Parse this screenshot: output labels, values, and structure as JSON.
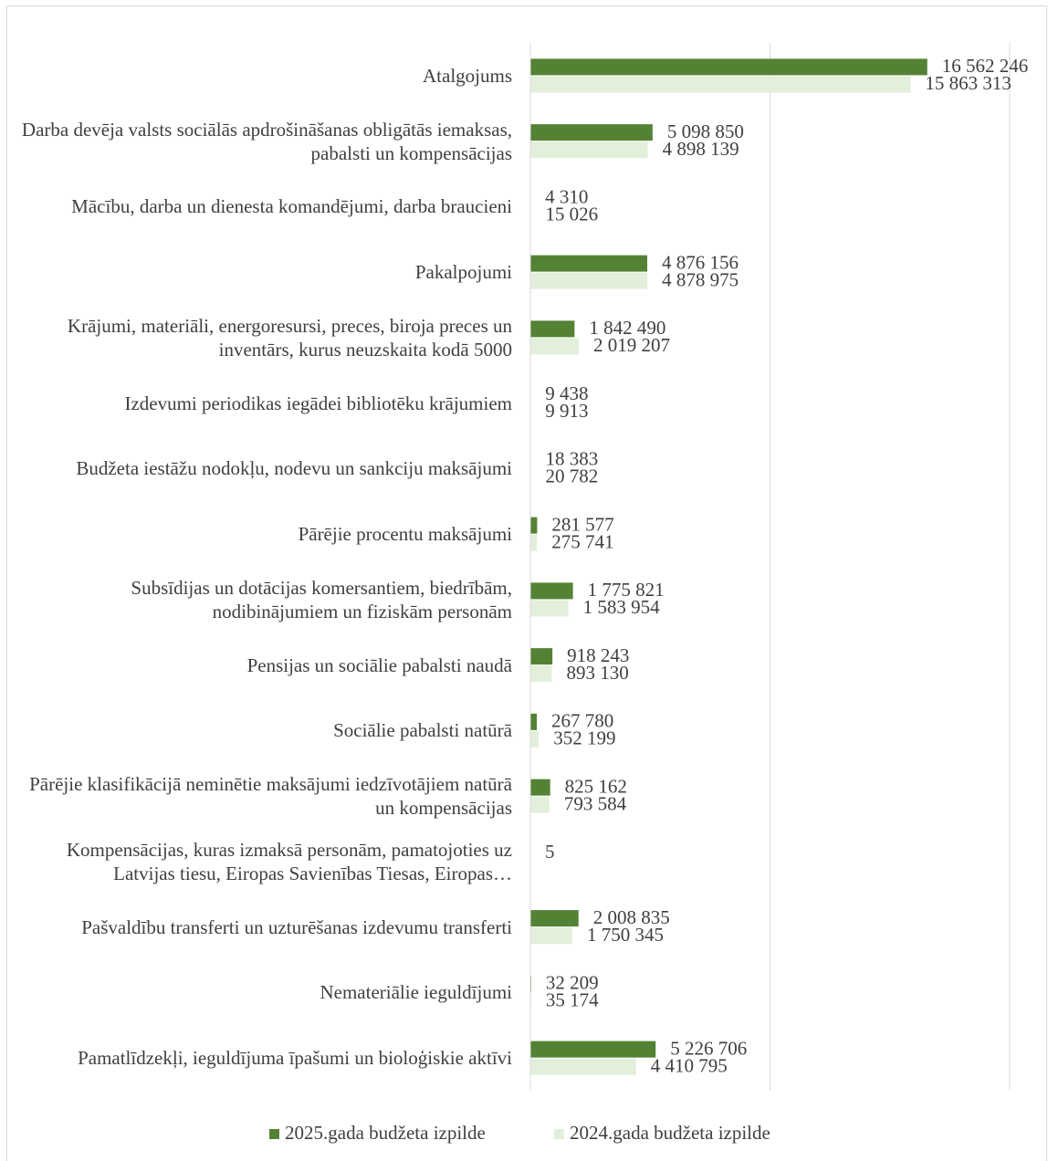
{
  "chart_data": {
    "type": "bar",
    "orientation": "horizontal",
    "categories": [
      "Atalgojums",
      "Darba devēja valsts sociālās apdrošināšanas obligātās iemaksas, pabalsti un kompensācijas",
      "Mācību, darba un dienesta komandējumi, darba braucieni",
      "Pakalpojumi",
      "Krājumi, materiāli, energoresursi, preces, biroja preces un inventārs, kurus neuzskaita kodā 5000",
      "Izdevumi periodikas iegādei bibliotēku krājumiem",
      "Budžeta iestāžu nodokļu, nodevu un sankciju maksājumi",
      "Pārējie procentu maksājumi",
      "Subsīdijas un dotācijas komersantiem, biedrībām, nodibinājumiem un fiziskām personām",
      "Pensijas un sociālie pabalsti naudā",
      "Sociālie pabalsti natūrā",
      "Pārējie klasifikācijā neminētie maksājumi iedzīvotājiem natūrā un kompensācijas",
      "Kompensācijas, kuras izmaksā personām, pamatojoties uz Latvijas tiesu, Eiropas Savienības Tiesas, Eiropas…",
      "Pašvaldību transferti un uzturēšanas izdevumu transferti",
      "Nemateriālie ieguldījumi",
      "Pamatlīdzekļi, ieguldījuma īpašumi un bioloģiskie aktīvi"
    ],
    "series": [
      {
        "name": "2025.gada budžeta izpilde",
        "color": "#548235",
        "values": [
          16562246,
          5098850,
          4310,
          4876156,
          1842490,
          9438,
          18383,
          281577,
          1775821,
          918243,
          267780,
          825162,
          5,
          2008835,
          32209,
          5226706
        ],
        "value_labels": [
          "16 562 246",
          "5 098 850",
          "4 310",
          "4 876 156",
          "1 842 490",
          "9 438",
          "18 383",
          "281 577",
          "1 775 821",
          "918 243",
          "267 780",
          "825 162",
          "5",
          "2 008 835",
          "32 209",
          "5 226 706"
        ]
      },
      {
        "name": "2024.gada budžeta izpilde",
        "color": "#e2efda",
        "values": [
          15863313,
          4898139,
          15026,
          4878975,
          2019207,
          9913,
          20782,
          275741,
          1583954,
          893130,
          352199,
          793584,
          null,
          1750345,
          35174,
          4410795
        ],
        "value_labels": [
          "15 863 313",
          "4 898 139",
          "15 026",
          "4 878 975",
          "2 019 207",
          "9 913",
          "20 782",
          "275 741",
          "1 583 954",
          "893 130",
          "352 199",
          "793 584",
          null,
          "1 750 345",
          "35 174",
          "4 410 795"
        ]
      }
    ],
    "xlim": [
      0,
      20000000
    ],
    "xticks": [
      0,
      10000000,
      20000000
    ],
    "grid": true,
    "legend": "bottom"
  }
}
